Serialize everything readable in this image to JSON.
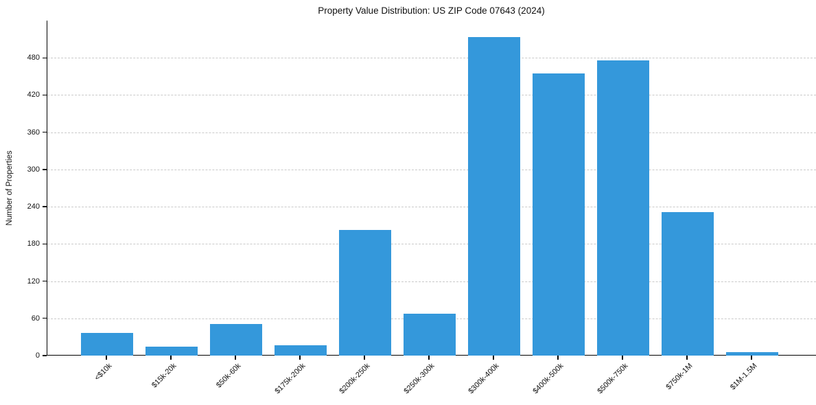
{
  "chart_data": {
    "type": "bar",
    "title": "Property Value Distribution: US ZIP Code 07643 (2024)",
    "xlabel": "",
    "ylabel": "Number of Properties",
    "categories": [
      "<$10k",
      "$15k-20k",
      "$50k-60k",
      "$175k-200k",
      "$200k-250k",
      "$250k-300k",
      "$300k-400k",
      "$400k-500k",
      "$500k-750k",
      "$750k-1M",
      "$1M-1.5M"
    ],
    "values": [
      36,
      14,
      51,
      17,
      202,
      67,
      513,
      455,
      476,
      231,
      5
    ],
    "yticks": [
      0,
      60,
      120,
      180,
      240,
      300,
      360,
      420,
      480
    ],
    "ylim": [
      0,
      540
    ],
    "grid": "horizontal-dashed",
    "legend_position": "none",
    "bar_color": "#3498db",
    "gridline_color": "#c9c9c9",
    "axis_color": "#000000",
    "background_color": "#ffffff"
  }
}
